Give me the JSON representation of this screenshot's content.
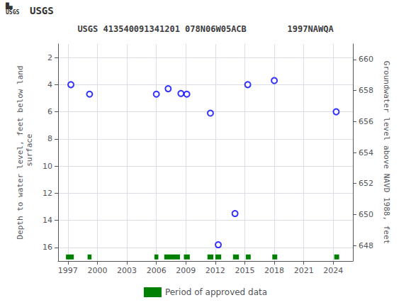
{
  "chart_data": {
    "type": "scatter",
    "title": "USGS 413540091341201 078N06W05ACB        1997NAWQA",
    "annotations": [
      "█▄\nUSGS",
      "USGS"
    ],
    "ylabel": "Depth to water level, feet below land\n surface",
    "y2label": "Groundwater level above NAVD 1988, feet",
    "xlim": [
      1996,
      2026
    ],
    "xticks": [
      1997,
      2000,
      2003,
      2006,
      2009,
      2012,
      2015,
      2018,
      2021,
      2024
    ],
    "ylim": [
      17,
      1
    ],
    "yticks": [
      2,
      4,
      6,
      8,
      10,
      12,
      14,
      16
    ],
    "y2lim": [
      647,
      661
    ],
    "y2ticks": [
      648,
      650,
      652,
      654,
      656,
      658,
      660
    ],
    "grid": true,
    "legend": "bottom",
    "series": [
      {
        "type": "scatter",
        "color": "#0000ff",
        "marker": "open_circle",
        "x": [
          1997.3,
          1999.2,
          2006.0,
          2007.2,
          2008.5,
          2009.1,
          2011.5,
          2012.3,
          2014.0,
          2015.3,
          2018.0,
          2024.3
        ],
        "values": [
          4.0,
          4.7,
          4.7,
          4.3,
          4.65,
          4.7,
          6.1,
          15.8,
          13.5,
          4.0,
          3.7,
          6.0
        ]
      },
      {
        "name": "Period of approved data",
        "type": "bar",
        "orientation": "horizontal",
        "color": "#008000",
        "y": 16.7,
        "start": [
          1996.8,
          1999.0,
          2005.8,
          2006.8,
          2008.8,
          2011.2,
          2012.0,
          2013.8,
          2015.1,
          2017.8,
          2024.1
        ],
        "end": [
          1997.6,
          1999.4,
          2006.2,
          2008.4,
          2009.4,
          2011.8,
          2012.6,
          2014.4,
          2015.6,
          2018.3,
          2024.6
        ]
      }
    ]
  }
}
